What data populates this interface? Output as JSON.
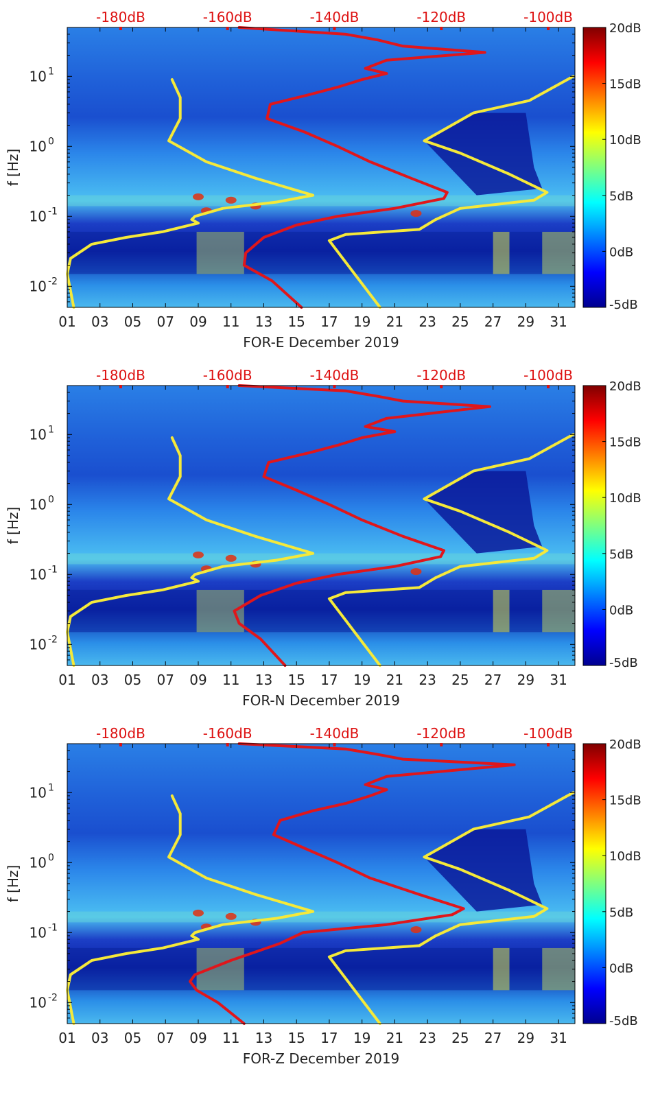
{
  "chart_data": [
    {
      "type": "heatmap",
      "title": "",
      "xlabel": "FOR-E December 2019",
      "ylabel": "f [Hz]",
      "x_ticks": [
        "01",
        "03",
        "05",
        "07",
        "09",
        "11",
        "13",
        "15",
        "17",
        "19",
        "21",
        "23",
        "25",
        "27",
        "29",
        "31"
      ],
      "x_range": [
        1,
        32
      ],
      "y_scale": "log",
      "y_range": [
        0.005,
        50
      ],
      "y_ticks": [
        {
          "value": 10,
          "base": "10",
          "exp": "1"
        },
        {
          "value": 1,
          "base": "10",
          "exp": "0"
        },
        {
          "value": 0.1,
          "base": "10",
          "exp": "-1"
        },
        {
          "value": 0.01,
          "base": "10",
          "exp": "-2"
        }
      ],
      "top_axis_ticks": [
        "-180dB",
        "-160dB",
        "-140dB",
        "-120dB",
        "-100dB"
      ],
      "top_axis_range": [
        -190,
        -95
      ],
      "top_axis_color": "#dd1111",
      "colorbar": {
        "ticks": [
          "20dB",
          "15dB",
          "10dB",
          "5dB",
          "0dB",
          "-5dB"
        ],
        "range": [
          -5,
          20
        ],
        "colormap": "jet"
      },
      "series": [
        {
          "color": "#f5e93a",
          "points": [
            {
              "f": 0.005,
              "x": 1.4
            },
            {
              "f": 0.015,
              "x": 1.0
            },
            {
              "f": 0.025,
              "x": 1.2
            },
            {
              "f": 0.04,
              "x": 2.5
            },
            {
              "f": 0.05,
              "x": 4.6
            },
            {
              "f": 0.06,
              "x": 6.8
            },
            {
              "f": 0.08,
              "x": 9.0
            },
            {
              "f": 0.09,
              "x": 8.6
            },
            {
              "f": 0.1,
              "x": 8.8
            },
            {
              "f": 0.13,
              "x": 10.5
            },
            {
              "f": 0.16,
              "x": 13.8
            },
            {
              "f": 0.2,
              "x": 16.0
            },
            {
              "f": 0.35,
              "x": 12.5
            },
            {
              "f": 0.6,
              "x": 9.5
            },
            {
              "f": 1.2,
              "x": 7.2
            },
            {
              "f": 2.5,
              "x": 7.9
            },
            {
              "f": 5.0,
              "x": 7.9
            },
            {
              "f": 9.0,
              "x": 7.4
            }
          ]
        },
        {
          "color": "#f5e93a",
          "points": [
            {
              "f": 0.005,
              "x": 20.1
            },
            {
              "f": 0.045,
              "x": 17.0
            },
            {
              "f": 0.055,
              "x": 18.0
            },
            {
              "f": 0.065,
              "x": 22.5
            },
            {
              "f": 0.09,
              "x": 23.5
            },
            {
              "f": 0.13,
              "x": 25.0
            },
            {
              "f": 0.17,
              "x": 29.5
            },
            {
              "f": 0.22,
              "x": 30.3
            },
            {
              "f": 0.4,
              "x": 28.0
            },
            {
              "f": 0.8,
              "x": 25.0
            },
            {
              "f": 1.2,
              "x": 22.8
            },
            {
              "f": 3.0,
              "x": 25.8
            },
            {
              "f": 4.5,
              "x": 29.2
            },
            {
              "f": 10.0,
              "x": 31.9
            }
          ]
        },
        {
          "color": "#e0161b",
          "points": [
            {
              "f": 0.005,
              "x": 15.3
            },
            {
              "f": 0.012,
              "x": 13.5
            },
            {
              "f": 0.02,
              "x": 11.8
            },
            {
              "f": 0.03,
              "x": 11.9
            },
            {
              "f": 0.05,
              "x": 13.0
            },
            {
              "f": 0.075,
              "x": 15.0
            },
            {
              "f": 0.1,
              "x": 17.5
            },
            {
              "f": 0.13,
              "x": 21.0
            },
            {
              "f": 0.18,
              "x": 24.0
            },
            {
              "f": 0.22,
              "x": 24.2
            },
            {
              "f": 0.35,
              "x": 22.0
            },
            {
              "f": 0.6,
              "x": 19.5
            },
            {
              "f": 1.0,
              "x": 17.5
            },
            {
              "f": 1.6,
              "x": 15.5
            },
            {
              "f": 2.5,
              "x": 13.2
            },
            {
              "f": 4.0,
              "x": 13.4
            },
            {
              "f": 5.5,
              "x": 15.8
            },
            {
              "f": 7.0,
              "x": 17.5
            },
            {
              "f": 9.0,
              "x": 19.0
            },
            {
              "f": 11.0,
              "x": 20.5
            },
            {
              "f": 13.0,
              "x": 19.2
            },
            {
              "f": 17.0,
              "x": 20.5
            },
            {
              "f": 22.0,
              "x": 26.5
            },
            {
              "f": 27.0,
              "x": 21.5
            },
            {
              "f": 33.0,
              "x": 20.0
            },
            {
              "f": 40.0,
              "x": 18.0
            },
            {
              "f": 50.0,
              "x": 11.5
            }
          ]
        }
      ]
    },
    {
      "type": "heatmap",
      "title": "",
      "xlabel": "FOR-N December 2019",
      "ylabel": "f [Hz]",
      "x_ticks": [
        "01",
        "03",
        "05",
        "07",
        "09",
        "11",
        "13",
        "15",
        "17",
        "19",
        "21",
        "23",
        "25",
        "27",
        "29",
        "31"
      ],
      "x_range": [
        1,
        32
      ],
      "y_scale": "log",
      "y_range": [
        0.005,
        50
      ],
      "y_ticks": [
        {
          "value": 10,
          "base": "10",
          "exp": "1"
        },
        {
          "value": 1,
          "base": "10",
          "exp": "0"
        },
        {
          "value": 0.1,
          "base": "10",
          "exp": "-1"
        },
        {
          "value": 0.01,
          "base": "10",
          "exp": "-2"
        }
      ],
      "top_axis_ticks": [
        "-180dB",
        "-160dB",
        "-140dB",
        "-120dB",
        "-100dB"
      ],
      "top_axis_range": [
        -190,
        -95
      ],
      "top_axis_color": "#dd1111",
      "colorbar": {
        "ticks": [
          "20dB",
          "15dB",
          "10dB",
          "5dB",
          "0dB",
          "-5dB"
        ],
        "range": [
          -5,
          20
        ],
        "colormap": "jet"
      },
      "series": [
        {
          "color": "#f5e93a",
          "points": [
            {
              "f": 0.005,
              "x": 1.4
            },
            {
              "f": 0.015,
              "x": 1.0
            },
            {
              "f": 0.025,
              "x": 1.2
            },
            {
              "f": 0.04,
              "x": 2.5
            },
            {
              "f": 0.05,
              "x": 4.6
            },
            {
              "f": 0.06,
              "x": 6.8
            },
            {
              "f": 0.08,
              "x": 9.0
            },
            {
              "f": 0.09,
              "x": 8.6
            },
            {
              "f": 0.1,
              "x": 8.8
            },
            {
              "f": 0.13,
              "x": 10.5
            },
            {
              "f": 0.16,
              "x": 13.8
            },
            {
              "f": 0.2,
              "x": 16.0
            },
            {
              "f": 0.35,
              "x": 12.5
            },
            {
              "f": 0.6,
              "x": 9.5
            },
            {
              "f": 1.2,
              "x": 7.2
            },
            {
              "f": 2.5,
              "x": 7.9
            },
            {
              "f": 5.0,
              "x": 7.9
            },
            {
              "f": 9.0,
              "x": 7.4
            }
          ]
        },
        {
          "color": "#f5e93a",
          "points": [
            {
              "f": 0.005,
              "x": 20.1
            },
            {
              "f": 0.045,
              "x": 17.0
            },
            {
              "f": 0.055,
              "x": 18.0
            },
            {
              "f": 0.065,
              "x": 22.5
            },
            {
              "f": 0.09,
              "x": 23.5
            },
            {
              "f": 0.13,
              "x": 25.0
            },
            {
              "f": 0.17,
              "x": 29.5
            },
            {
              "f": 0.22,
              "x": 30.3
            },
            {
              "f": 0.4,
              "x": 28.0
            },
            {
              "f": 0.8,
              "x": 25.0
            },
            {
              "f": 1.2,
              "x": 22.8
            },
            {
              "f": 3.0,
              "x": 25.8
            },
            {
              "f": 4.5,
              "x": 29.2
            },
            {
              "f": 10.0,
              "x": 31.9
            }
          ]
        },
        {
          "color": "#e0161b",
          "points": [
            {
              "f": 0.005,
              "x": 14.3
            },
            {
              "f": 0.012,
              "x": 12.8
            },
            {
              "f": 0.02,
              "x": 11.5
            },
            {
              "f": 0.03,
              "x": 11.2
            },
            {
              "f": 0.05,
              "x": 12.8
            },
            {
              "f": 0.075,
              "x": 15.0
            },
            {
              "f": 0.1,
              "x": 17.5
            },
            {
              "f": 0.13,
              "x": 21.0
            },
            {
              "f": 0.18,
              "x": 23.8
            },
            {
              "f": 0.22,
              "x": 24.0
            },
            {
              "f": 0.35,
              "x": 21.5
            },
            {
              "f": 0.6,
              "x": 19.0
            },
            {
              "f": 1.0,
              "x": 17.0
            },
            {
              "f": 1.6,
              "x": 15.0
            },
            {
              "f": 2.5,
              "x": 13.0
            },
            {
              "f": 4.0,
              "x": 13.3
            },
            {
              "f": 5.5,
              "x": 15.8
            },
            {
              "f": 7.0,
              "x": 17.5
            },
            {
              "f": 9.0,
              "x": 19.0
            },
            {
              "f": 11.0,
              "x": 21.0
            },
            {
              "f": 13.0,
              "x": 19.2
            },
            {
              "f": 17.0,
              "x": 20.5
            },
            {
              "f": 25.0,
              "x": 26.8
            },
            {
              "f": 30.0,
              "x": 21.5
            },
            {
              "f": 35.0,
              "x": 20.0
            },
            {
              "f": 42.0,
              "x": 18.0
            },
            {
              "f": 50.0,
              "x": 11.5
            }
          ]
        }
      ]
    },
    {
      "type": "heatmap",
      "title": "",
      "xlabel": "FOR-Z December 2019",
      "ylabel": "f [Hz]",
      "x_ticks": [
        "01",
        "03",
        "05",
        "07",
        "09",
        "11",
        "13",
        "15",
        "17",
        "19",
        "21",
        "23",
        "25",
        "27",
        "29",
        "31"
      ],
      "x_range": [
        1,
        32
      ],
      "y_scale": "log",
      "y_range": [
        0.005,
        50
      ],
      "y_ticks": [
        {
          "value": 10,
          "base": "10",
          "exp": "1"
        },
        {
          "value": 1,
          "base": "10",
          "exp": "0"
        },
        {
          "value": 0.1,
          "base": "10",
          "exp": "-1"
        },
        {
          "value": 0.01,
          "base": "10",
          "exp": "-2"
        }
      ],
      "top_axis_ticks": [
        "-180dB",
        "-160dB",
        "-140dB",
        "-120dB",
        "-100dB"
      ],
      "top_axis_range": [
        -190,
        -95
      ],
      "top_axis_color": "#dd1111",
      "colorbar": {
        "ticks": [
          "20dB",
          "15dB",
          "10dB",
          "5dB",
          "0dB",
          "-5dB"
        ],
        "range": [
          -5,
          20
        ],
        "colormap": "jet"
      },
      "series": [
        {
          "color": "#f5e93a",
          "points": [
            {
              "f": 0.005,
              "x": 1.4
            },
            {
              "f": 0.015,
              "x": 1.0
            },
            {
              "f": 0.025,
              "x": 1.2
            },
            {
              "f": 0.04,
              "x": 2.5
            },
            {
              "f": 0.05,
              "x": 4.6
            },
            {
              "f": 0.06,
              "x": 6.8
            },
            {
              "f": 0.08,
              "x": 9.0
            },
            {
              "f": 0.09,
              "x": 8.6
            },
            {
              "f": 0.1,
              "x": 8.8
            },
            {
              "f": 0.13,
              "x": 10.5
            },
            {
              "f": 0.16,
              "x": 13.8
            },
            {
              "f": 0.2,
              "x": 16.0
            },
            {
              "f": 0.35,
              "x": 12.5
            },
            {
              "f": 0.6,
              "x": 9.5
            },
            {
              "f": 1.2,
              "x": 7.2
            },
            {
              "f": 2.5,
              "x": 7.9
            },
            {
              "f": 5.0,
              "x": 7.9
            },
            {
              "f": 9.0,
              "x": 7.4
            }
          ]
        },
        {
          "color": "#f5e93a",
          "points": [
            {
              "f": 0.005,
              "x": 20.1
            },
            {
              "f": 0.045,
              "x": 17.0
            },
            {
              "f": 0.055,
              "x": 18.0
            },
            {
              "f": 0.065,
              "x": 22.5
            },
            {
              "f": 0.09,
              "x": 23.5
            },
            {
              "f": 0.13,
              "x": 25.0
            },
            {
              "f": 0.17,
              "x": 29.5
            },
            {
              "f": 0.22,
              "x": 30.3
            },
            {
              "f": 0.4,
              "x": 28.0
            },
            {
              "f": 0.8,
              "x": 25.0
            },
            {
              "f": 1.2,
              "x": 22.8
            },
            {
              "f": 3.0,
              "x": 25.8
            },
            {
              "f": 4.5,
              "x": 29.2
            },
            {
              "f": 10.0,
              "x": 31.9
            }
          ]
        },
        {
          "color": "#e0161b",
          "points": [
            {
              "f": 0.005,
              "x": 11.8
            },
            {
              "f": 0.01,
              "x": 10.2
            },
            {
              "f": 0.015,
              "x": 8.9
            },
            {
              "f": 0.02,
              "x": 8.5
            },
            {
              "f": 0.025,
              "x": 8.8
            },
            {
              "f": 0.04,
              "x": 11.0
            },
            {
              "f": 0.07,
              "x": 14.0
            },
            {
              "f": 0.1,
              "x": 15.4
            },
            {
              "f": 0.13,
              "x": 20.5
            },
            {
              "f": 0.18,
              "x": 24.5
            },
            {
              "f": 0.22,
              "x": 25.2
            },
            {
              "f": 0.35,
              "x": 22.5
            },
            {
              "f": 0.6,
              "x": 19.5
            },
            {
              "f": 1.0,
              "x": 17.5
            },
            {
              "f": 1.6,
              "x": 15.5
            },
            {
              "f": 2.5,
              "x": 13.6
            },
            {
              "f": 4.0,
              "x": 14.0
            },
            {
              "f": 5.5,
              "x": 16.0
            },
            {
              "f": 7.0,
              "x": 18.0
            },
            {
              "f": 9.0,
              "x": 19.5
            },
            {
              "f": 11.0,
              "x": 20.5
            },
            {
              "f": 13.0,
              "x": 19.2
            },
            {
              "f": 17.0,
              "x": 20.5
            },
            {
              "f": 25.0,
              "x": 28.3
            },
            {
              "f": 30.0,
              "x": 21.5
            },
            {
              "f": 35.0,
              "x": 20.0
            },
            {
              "f": 42.0,
              "x": 18.0
            },
            {
              "f": 50.0,
              "x": 11.5
            }
          ]
        }
      ]
    }
  ]
}
